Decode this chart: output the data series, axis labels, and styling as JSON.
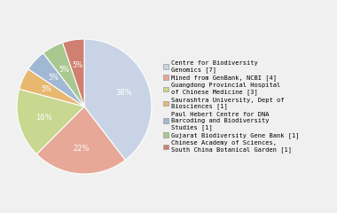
{
  "labels": [
    "Centre for Biodiversity\nGenomics [7]",
    "Mined from GenBank, NCBI [4]",
    "Guangdong Provincial Hospital\nof Chinese Medicine [3]",
    "Saurashtra University, Dept of\nBiosciences [1]",
    "Paul Hebert Centre for DNA\nBarcoding and Biodiversity\nStudies [1]",
    "Gujarat Biodiversity Gene Bank [1]",
    "Chinese Academy of Sciences,\nSouth China Botanical Garden [1]"
  ],
  "values": [
    38,
    22,
    16,
    5,
    5,
    5,
    5
  ],
  "colors": [
    "#c8d4e6",
    "#e8a898",
    "#c8d890",
    "#e8b870",
    "#a0b8d4",
    "#a8c890",
    "#d08070"
  ],
  "pct_labels": [
    "38%",
    "22%",
    "16%",
    "5%",
    "5%",
    "5%",
    "5%"
  ],
  "startangle": 90,
  "background_color": "#f0f0f0"
}
